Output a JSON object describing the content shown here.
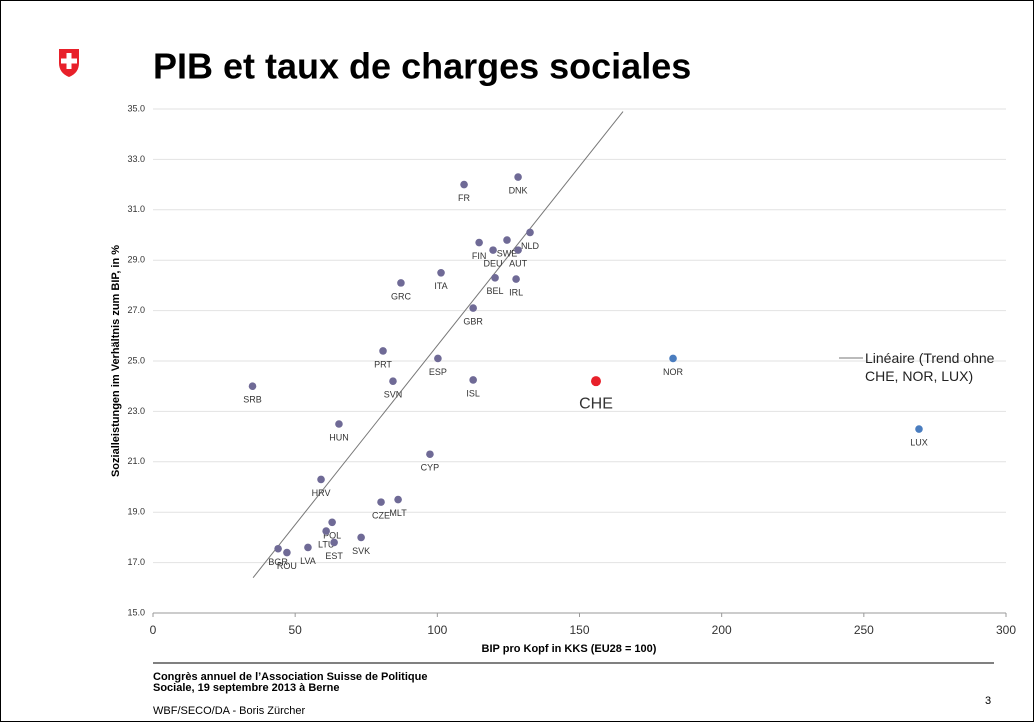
{
  "title": "PIB et taux de charges sociales",
  "chart_data": {
    "type": "scatter",
    "x_label": "BIP pro Kopf in KKS (EU28 = 100)",
    "y_label": "Sozialleistungen im Verhältnis zum BIP, in %",
    "xlim": [
      0,
      300
    ],
    "xticks": [
      0,
      50,
      100,
      150,
      200,
      250,
      300
    ],
    "ylim": [
      15,
      35
    ],
    "yticks": [
      {
        "value": 15,
        "label": "15.0"
      },
      {
        "value": 17,
        "label": "17.0"
      },
      {
        "value": 19,
        "label": "19.0"
      },
      {
        "value": 21,
        "label": "21.0"
      },
      {
        "value": 23,
        "label": "23.0"
      },
      {
        "value": 25,
        "label": "25.0"
      },
      {
        "value": 27,
        "label": "27.0"
      },
      {
        "value": 29,
        "label": "29.0"
      },
      {
        "value": 31,
        "label": "31.0"
      },
      {
        "value": 33,
        "label": "33.0"
      },
      {
        "value": 35,
        "label": "35.0"
      }
    ],
    "grid": true,
    "series": [
      {
        "color": "#6f6a96",
        "labels": [
          "SRB",
          "HUN",
          "HRV",
          "CYP",
          "CZE",
          "MLT",
          "PRT",
          "SVN",
          "ESP",
          "ISL",
          "GBR",
          "GRC",
          "ITA",
          "BEL",
          "IRL",
          "FIN",
          "DEU",
          "SWE",
          "AUT",
          "NLD",
          "FR",
          "DNK",
          "POL",
          "LTU",
          "EST",
          "SVK",
          "LVA",
          "BGR",
          "ROU"
        ],
        "x": [
          35,
          65.4,
          59.1,
          97.4,
          80.2,
          86.2,
          80.9,
          84.4,
          100.2,
          112.6,
          112.6,
          87.2,
          101.3,
          120.3,
          127.7,
          114.7,
          119.6,
          124.5,
          128.4,
          132.6,
          109.4,
          128.4,
          63,
          60.9,
          63.7,
          73.2,
          54.5,
          44,
          47.1
        ],
        "values": [
          24.0,
          22.5,
          20.3,
          21.3,
          19.4,
          19.5,
          25.4,
          24.2,
          25.1,
          24.25,
          27.1,
          28.1,
          28.5,
          28.3,
          28.25,
          29.7,
          29.4,
          29.8,
          29.4,
          30.1,
          32.0,
          32.3,
          18.6,
          18.25,
          17.8,
          18.0,
          17.6,
          17.55,
          17.4
        ]
      },
      {
        "color": "#e8202a",
        "labels": [
          "CHE"
        ],
        "x": [
          155.8
        ],
        "values": [
          24.2
        ]
      },
      {
        "color": "#4a7dbf",
        "labels": [
          "NOR",
          "LUX"
        ],
        "x": [
          182.9,
          269.4
        ],
        "values": [
          25.1,
          22.3
        ]
      }
    ],
    "trendline": {
      "name": "Linéaire (Trend ohne CHE, NOR, LUX)",
      "color": "#777777",
      "x": [
        35.2,
        165.3
      ],
      "values": [
        16.4,
        34.9
      ]
    }
  },
  "footer": {
    "event": [
      "Congrès annuel de l’Association Suisse de Politique",
      "Sociale, 19 septembre 2013 à Berne"
    ],
    "author": "WBF/SECO/DA - Boris Zürcher",
    "page": "3"
  }
}
